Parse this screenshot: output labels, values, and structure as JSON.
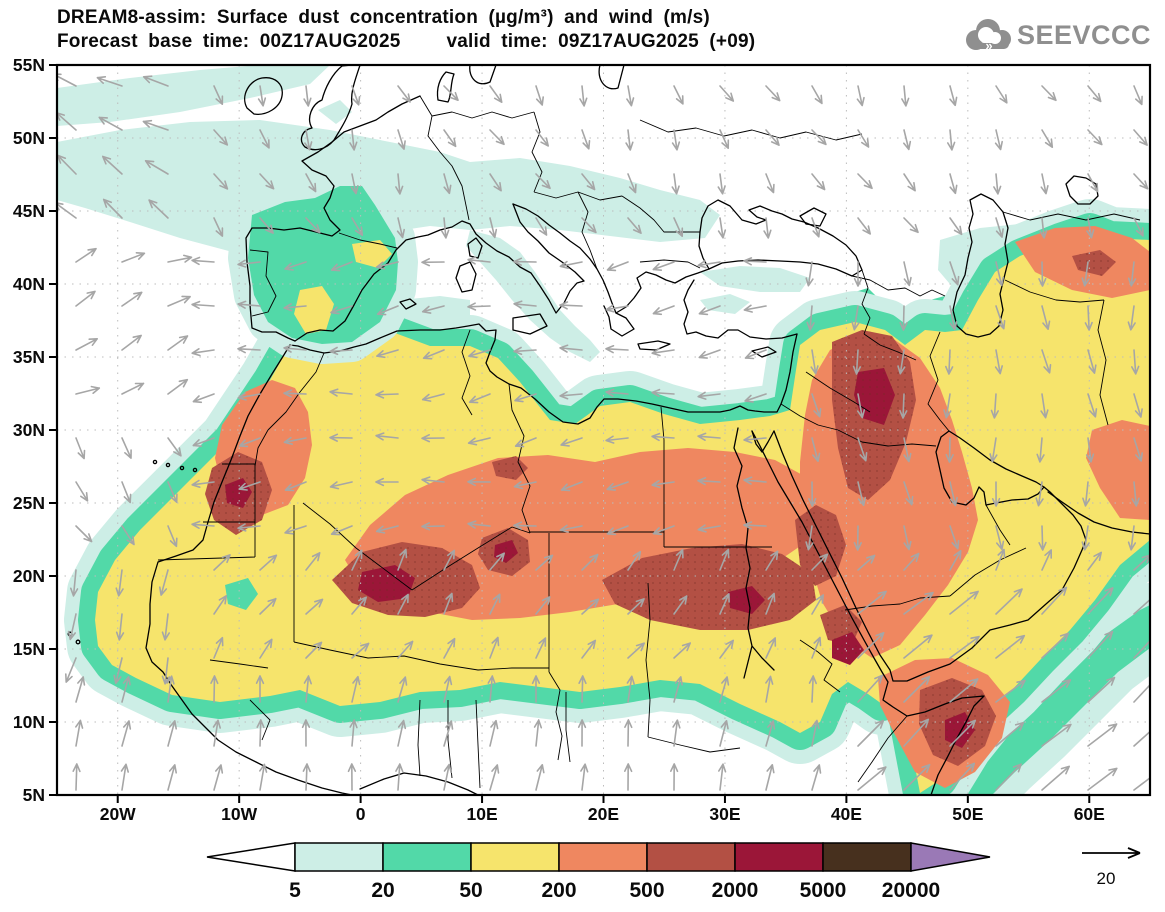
{
  "header": {
    "title": "DREAM8-assim: Surface dust concentration (µg/m³) and wind (m/s)",
    "forecast_base": "Forecast base time: 00Z17AUG2025",
    "valid": "valid time: 09Z17AUG2025 (+09)",
    "logo_text": "SEEVCCC"
  },
  "chart_data": {
    "type": "heatmap",
    "subtype": "filled-contour-map-with-wind-vectors",
    "title": "DREAM8-assim: Surface dust concentration (µg/m³) and wind (m/s)",
    "subtitle": "Forecast base time: 00Z17AUG2025   valid time: 09Z17AUG2025 (+09)",
    "model": "DREAM8-assim",
    "variable": "Surface dust concentration",
    "units": "µg/m³",
    "wind_units": "m/s",
    "forecast_base_time": "00Z17AUG2025",
    "valid_time": "09Z17AUG2025",
    "forecast_hour": "+09",
    "map_domain": {
      "lon_min": -25,
      "lon_max": 65,
      "lat_min": 5,
      "lat_max": 55
    },
    "grid": "dotted, 10° lon × 5° lat",
    "lat_ticks": [
      {
        "label": "55N",
        "lat": 55
      },
      {
        "label": "50N",
        "lat": 50
      },
      {
        "label": "45N",
        "lat": 45
      },
      {
        "label": "40N",
        "lat": 40
      },
      {
        "label": "35N",
        "lat": 35
      },
      {
        "label": "30N",
        "lat": 30
      },
      {
        "label": "25N",
        "lat": 25
      },
      {
        "label": "20N",
        "lat": 20
      },
      {
        "label": "15N",
        "lat": 15
      },
      {
        "label": "10N",
        "lat": 10
      },
      {
        "label": "5N",
        "lat": 5
      }
    ],
    "lon_ticks": [
      {
        "label": "20W",
        "lon": -20
      },
      {
        "label": "10W",
        "lon": -10
      },
      {
        "label": "0",
        "lon": 0
      },
      {
        "label": "10E",
        "lon": 10
      },
      {
        "label": "20E",
        "lon": 20
      },
      {
        "label": "30E",
        "lon": 30
      },
      {
        "label": "40E",
        "lon": 40
      },
      {
        "label": "50E",
        "lon": 50
      },
      {
        "label": "60E",
        "lon": 60
      }
    ],
    "colorbar": {
      "levels": [
        "5",
        "20",
        "50",
        "200",
        "500",
        "2000",
        "5000",
        "20000"
      ],
      "colors": [
        "#ffffff",
        "#cdeee6",
        "#52d9a8",
        "#f6e46c",
        "#ef8760",
        "#b35044",
        "#9b1638",
        "#47301e",
        "#9a79b6"
      ],
      "outline_color": "#000000"
    },
    "wind_reference": {
      "label": "20",
      "speed_ms": 20
    },
    "gridline_color": "#bcbcbc",
    "arrow_color": "#a6a6a6",
    "coast_color": "#000000",
    "frame_color": "#000000"
  }
}
